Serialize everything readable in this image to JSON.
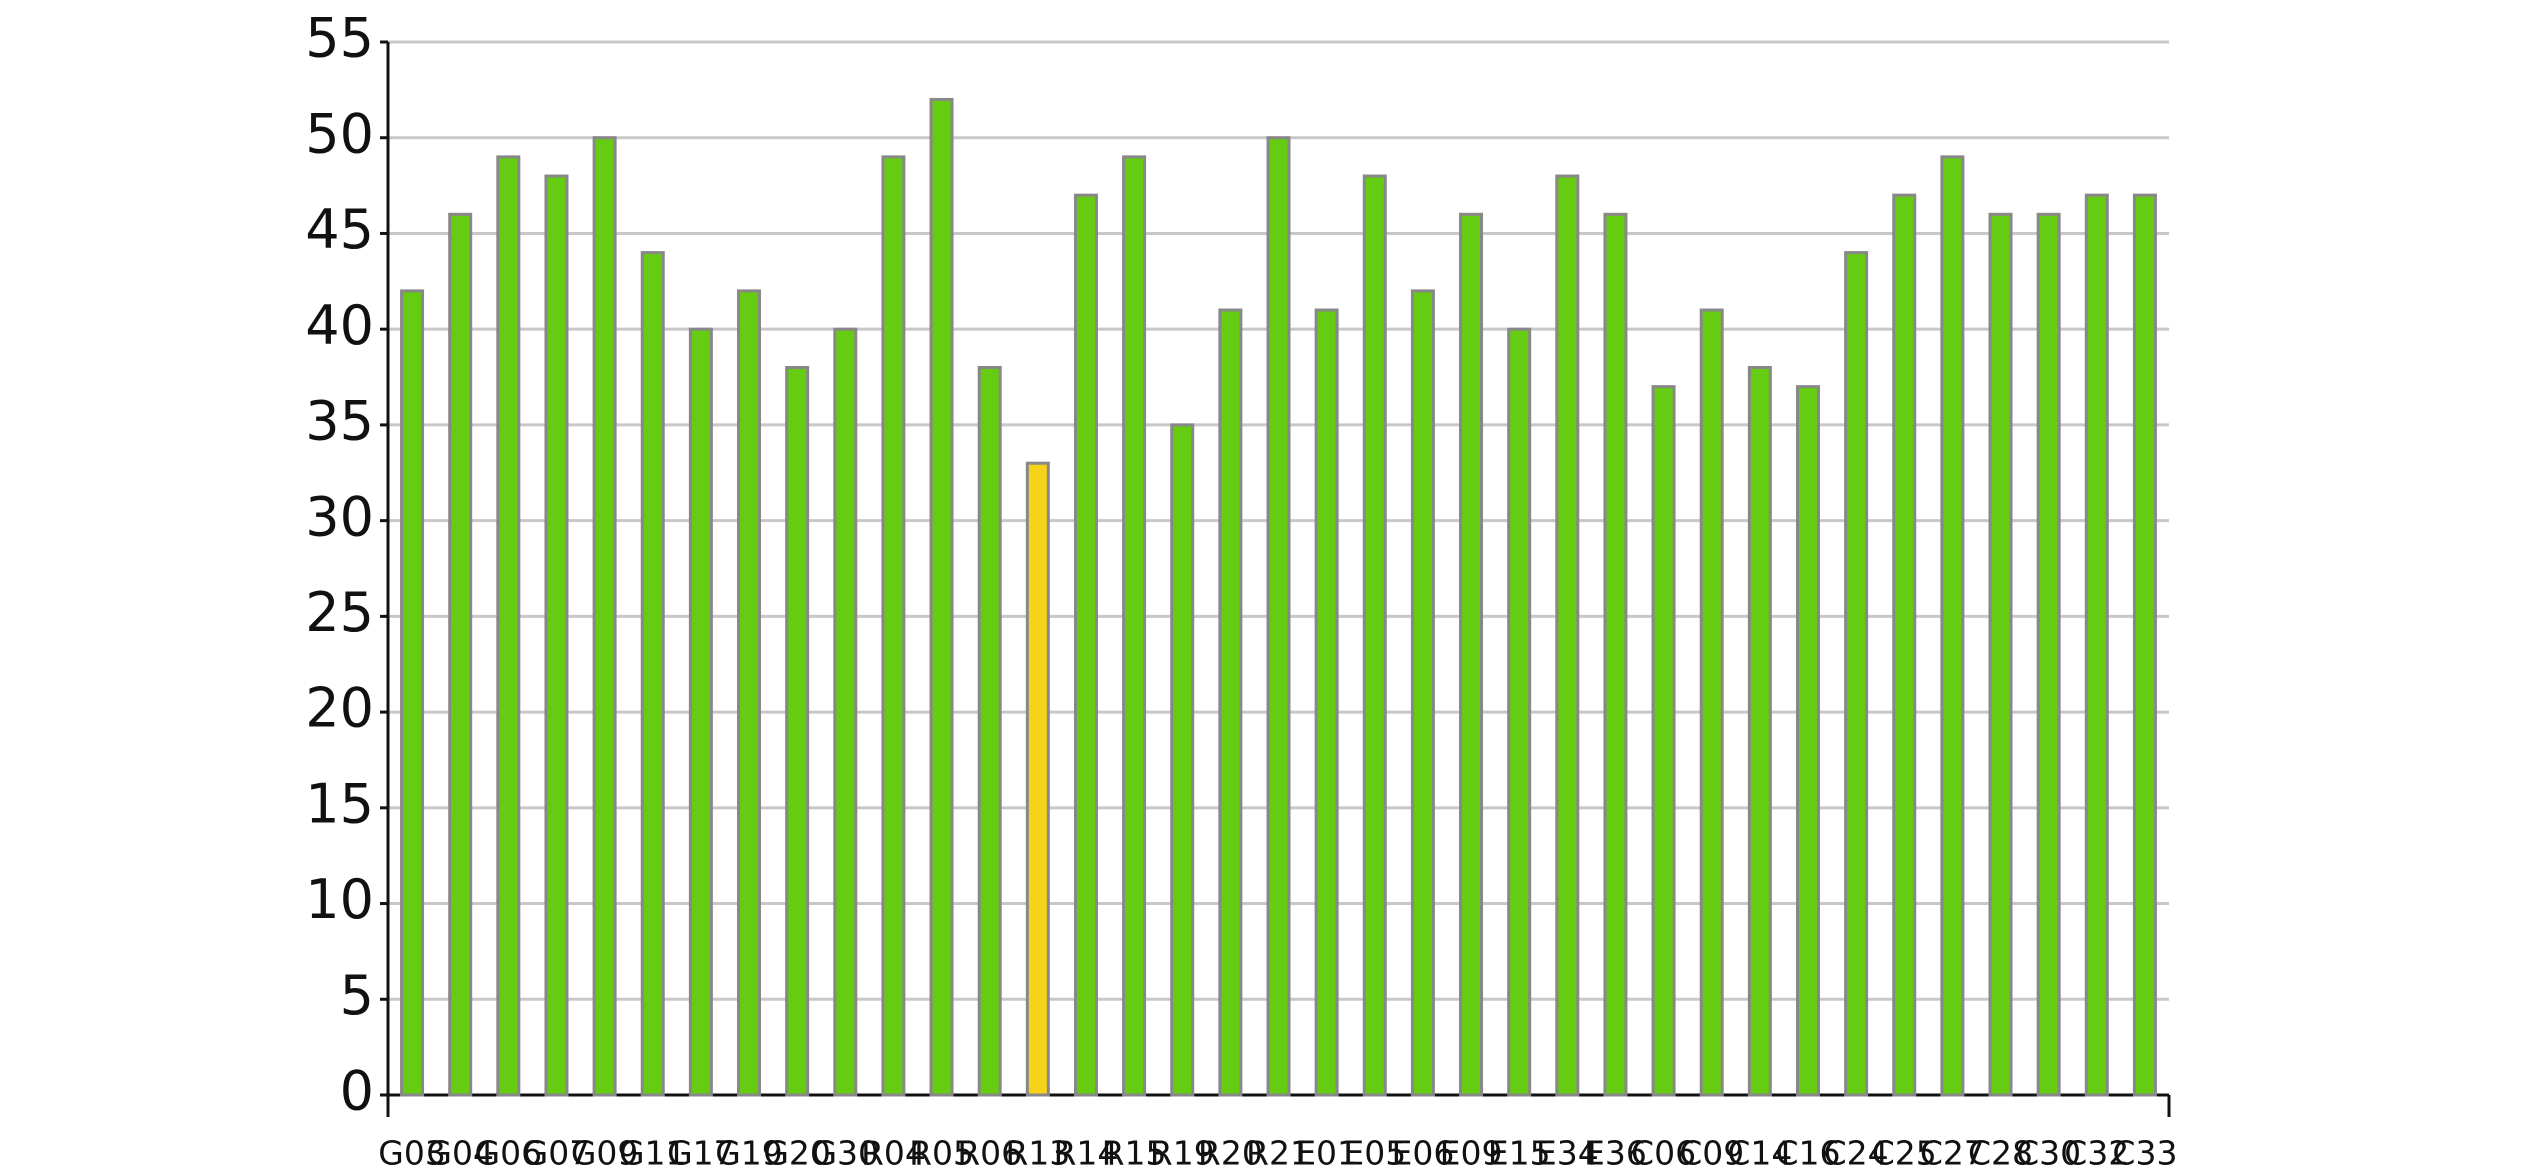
{
  "chart_data": {
    "type": "bar",
    "categories": [
      "G03",
      "G04",
      "G06",
      "G07",
      "G09",
      "G11",
      "G17",
      "G19",
      "G20",
      "G30",
      "R04",
      "R05",
      "R06",
      "R13",
      "R14",
      "R15",
      "R19",
      "R20",
      "R21",
      "E01",
      "E05",
      "E06",
      "E09",
      "E15",
      "E34",
      "E36",
      "C06",
      "C09",
      "C14",
      "C16",
      "C24",
      "C25",
      "C27",
      "C28",
      "C30",
      "C32",
      "C33"
    ],
    "values": [
      42,
      46,
      49,
      48,
      50,
      44,
      40,
      42,
      38,
      40,
      49,
      52,
      38,
      33,
      47,
      49,
      35,
      41,
      50,
      41,
      48,
      42,
      46,
      40,
      48,
      46,
      37,
      41,
      38,
      37,
      44,
      47,
      49,
      46,
      46,
      47,
      47
    ],
    "colors": [
      "#66cc11",
      "#66cc11",
      "#66cc11",
      "#66cc11",
      "#66cc11",
      "#66cc11",
      "#66cc11",
      "#66cc11",
      "#66cc11",
      "#66cc11",
      "#66cc11",
      "#66cc11",
      "#66cc11",
      "#f7d21a",
      "#66cc11",
      "#66cc11",
      "#66cc11",
      "#66cc11",
      "#66cc11",
      "#66cc11",
      "#66cc11",
      "#66cc11",
      "#66cc11",
      "#66cc11",
      "#66cc11",
      "#66cc11",
      "#66cc11",
      "#66cc11",
      "#66cc11",
      "#66cc11",
      "#66cc11",
      "#66cc11",
      "#66cc11",
      "#66cc11",
      "#66cc11",
      "#66cc11",
      "#66cc11"
    ],
    "ylim": [
      0,
      55
    ],
    "yticks": [
      0,
      5,
      10,
      15,
      20,
      25,
      30,
      35,
      40,
      45,
      50,
      55
    ],
    "grid": true
  }
}
